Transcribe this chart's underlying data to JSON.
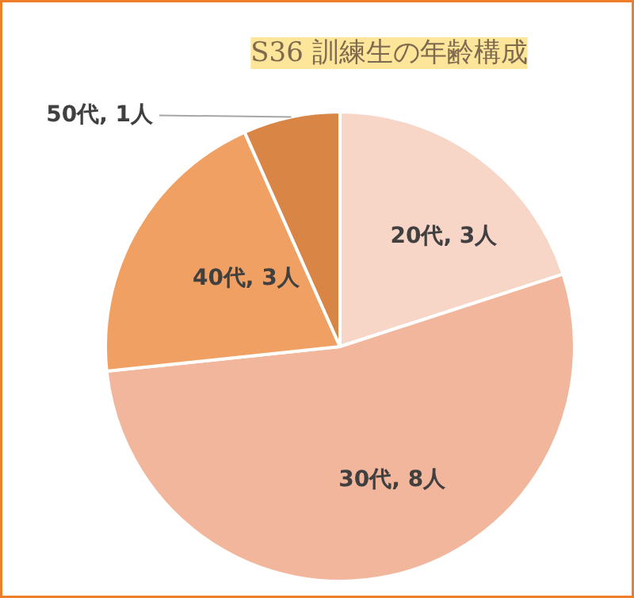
{
  "chart_data": {
    "type": "pie",
    "title": "S36 訓練生の年齢構成",
    "categories": [
      "20代",
      "30代",
      "40代",
      "50代"
    ],
    "values": [
      3,
      8,
      3,
      1
    ],
    "value_labels": [
      "3人",
      "8人",
      "3人",
      "1人"
    ],
    "colors": [
      "#f7d5c7",
      "#f2b69c",
      "#f0a062",
      "#d98546"
    ]
  }
}
